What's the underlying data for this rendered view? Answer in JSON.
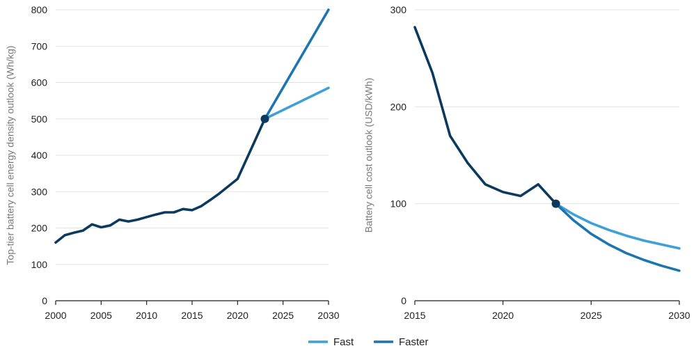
{
  "chart_data": [
    {
      "type": "line",
      "title": "",
      "xlabel": "",
      "ylabel": "Top-tier battery cell energy density outlook (Wh/kg)",
      "xlim": [
        2000,
        2030
      ],
      "ylim": [
        0,
        800
      ],
      "x_ticks": [
        "2000",
        "2005",
        "2010",
        "2015",
        "2020",
        "2025",
        "2030"
      ],
      "y_ticks": [
        "0",
        "100",
        "200",
        "300",
        "400",
        "500",
        "600",
        "700",
        "800"
      ],
      "grid": "horizontal",
      "series": [
        {
          "name": "",
          "color": "#0b3a5e",
          "x": [
            2000,
            2001,
            2002,
            2003,
            2004,
            2005,
            2006,
            2007,
            2008,
            2009,
            2010,
            2011,
            2012,
            2013,
            2014,
            2015,
            2016,
            2017,
            2018,
            2019,
            2020,
            2021,
            2022,
            2023
          ],
          "y": [
            160,
            180,
            187,
            193,
            210,
            202,
            207,
            223,
            218,
            223,
            230,
            237,
            243,
            243,
            252,
            249,
            260,
            277,
            295,
            315,
            335,
            390,
            445,
            500
          ]
        },
        {
          "name": "Fast",
          "color": "#3da0d6",
          "x": [
            2023,
            2030
          ],
          "y": [
            500,
            585
          ]
        },
        {
          "name": "Faster",
          "color": "#1c75b1",
          "x": [
            2023,
            2030
          ],
          "y": [
            500,
            800
          ]
        }
      ],
      "marker": {
        "x": 2023,
        "y": 500
      }
    },
    {
      "type": "line",
      "title": "",
      "xlabel": "",
      "ylabel": "Battery cell cost outlook (USD/kWh)",
      "xlim": [
        2015,
        2030
      ],
      "ylim": [
        0,
        300
      ],
      "x_ticks": [
        "2015",
        "2020",
        "2025",
        "2030"
      ],
      "y_ticks": [
        "0",
        "100",
        "200",
        "300"
      ],
      "grid": "horizontal",
      "series": [
        {
          "name": "",
          "color": "#0b3a5e",
          "x": [
            2015,
            2016,
            2017,
            2018,
            2019,
            2020,
            2021,
            2022,
            2023
          ],
          "y": [
            282,
            235,
            170,
            142,
            120,
            112,
            108,
            120,
            100
          ]
        },
        {
          "name": "Fast",
          "color": "#3da0d6",
          "x": [
            2023,
            2024,
            2025,
            2026,
            2027,
            2028,
            2029,
            2030
          ],
          "y": [
            100,
            89,
            80,
            73,
            67,
            62,
            58,
            54
          ]
        },
        {
          "name": "Faster",
          "color": "#1c75b1",
          "x": [
            2023,
            2024,
            2025,
            2026,
            2027,
            2028,
            2029,
            2030
          ],
          "y": [
            100,
            83,
            69,
            58,
            49,
            42,
            36,
            31
          ]
        }
      ],
      "marker": {
        "x": 2023,
        "y": 100
      }
    }
  ],
  "legend": {
    "placement": "bottom-center",
    "items": [
      {
        "label": "Fast",
        "color": "#3da0d6"
      },
      {
        "label": "Faster",
        "color": "#1c75b1"
      }
    ]
  }
}
